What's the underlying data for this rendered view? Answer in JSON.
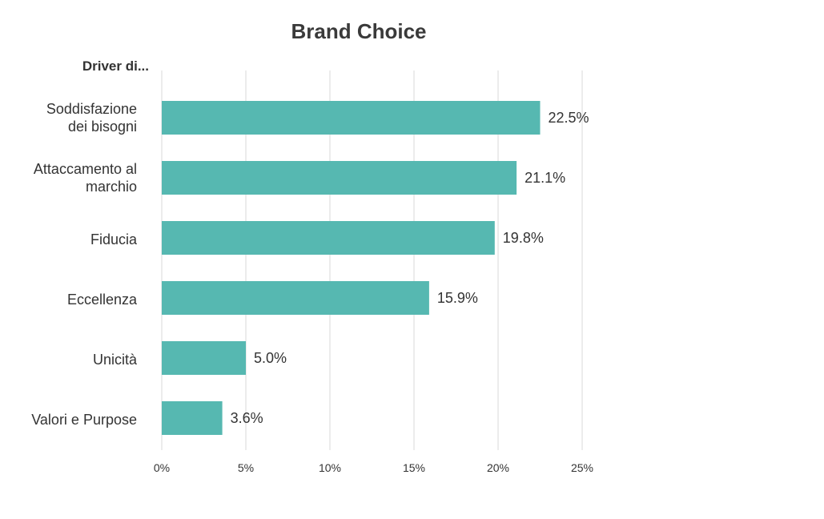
{
  "chart_data": {
    "type": "bar",
    "orientation": "horizontal",
    "title": "Brand Choice",
    "ylabel": "Driver di...",
    "xlabel": "",
    "categories": [
      [
        "Soddisfazione",
        "dei bisogni"
      ],
      [
        "Attaccamento al",
        "marchio"
      ],
      [
        "Fiducia"
      ],
      [
        "Eccellenza"
      ],
      [
        "Unicità"
      ],
      [
        "Valori e Purpose"
      ]
    ],
    "values": [
      22.5,
      21.1,
      19.8,
      15.9,
      5.0,
      3.6
    ],
    "value_labels": [
      "22.5%",
      "21.1%",
      "19.8%",
      "15.9%",
      "5.0%",
      "3.6%"
    ],
    "xlim": [
      0,
      25
    ],
    "xticks": [
      0,
      5,
      10,
      15,
      20,
      25
    ],
    "xtick_labels": [
      "0%",
      "5%",
      "10%",
      "15%",
      "20%",
      "25%"
    ],
    "grid": true,
    "bar_color": "#56b8b1",
    "grid_color": "#d9d9d9"
  }
}
